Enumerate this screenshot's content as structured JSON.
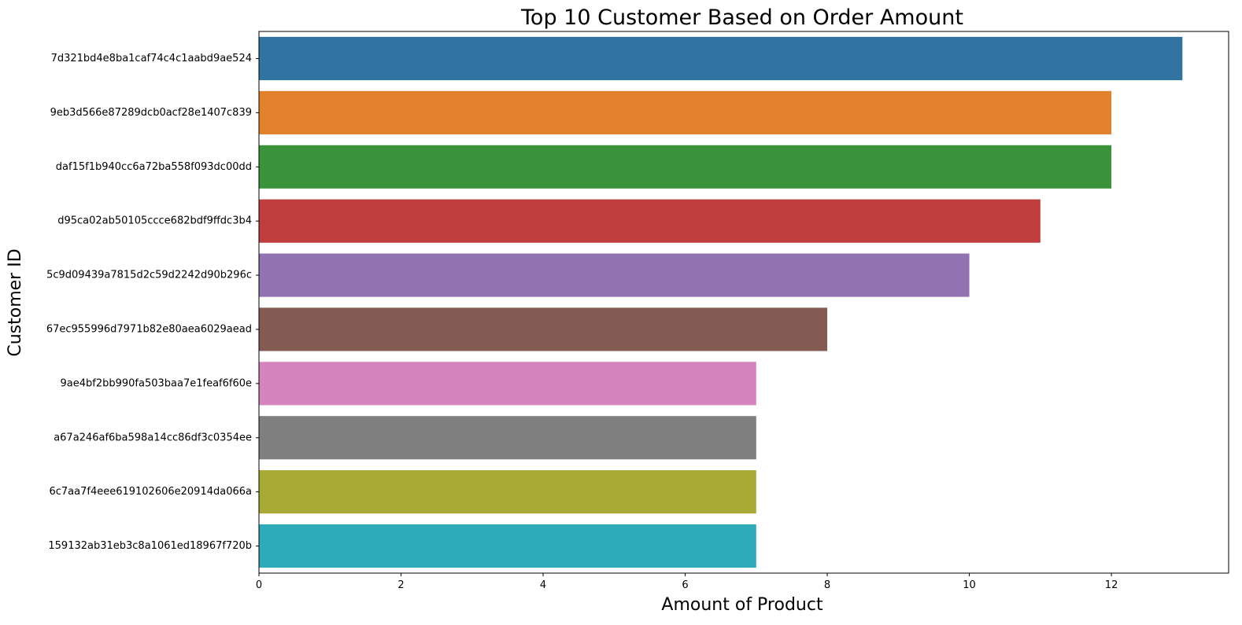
{
  "chart_data": {
    "type": "bar",
    "orientation": "horizontal",
    "title": "Top 10 Customer Based on Order Amount",
    "xlabel": "Amount of Product",
    "ylabel": "Customer ID",
    "categories": [
      "7d321bd4e8ba1caf74c4c1aabd9ae524",
      "9eb3d566e87289dcb0acf28e1407c839",
      "daf15f1b940cc6a72ba558f093dc00dd",
      "d95ca02ab50105ccce682bdf9ffdc3b4",
      "5c9d09439a7815d2c59d2242d90b296c",
      "67ec955996d7971b82e80aea6029aead",
      "9ae4bf2bb990fa503baa7e1feaf6f60e",
      "a67a246af6ba598a14cc86df3c0354ee",
      "6c7aa7f4eee619102606e20914da066a",
      "159132ab31eb3c8a1061ed18967f720b"
    ],
    "values": [
      13,
      12,
      12,
      11,
      10,
      8,
      7,
      7,
      7,
      7
    ],
    "colors": [
      "#3274a1",
      "#e1812c",
      "#3a923a",
      "#c03d3e",
      "#9372b2",
      "#845b53",
      "#d684bd",
      "#7f7f7f",
      "#a9aa35",
      "#2eabb8"
    ],
    "xlim": [
      0,
      13.65
    ],
    "xticks": [
      "0",
      "2",
      "4",
      "6",
      "8",
      "10",
      "12"
    ],
    "grid": false,
    "legend": "none"
  }
}
